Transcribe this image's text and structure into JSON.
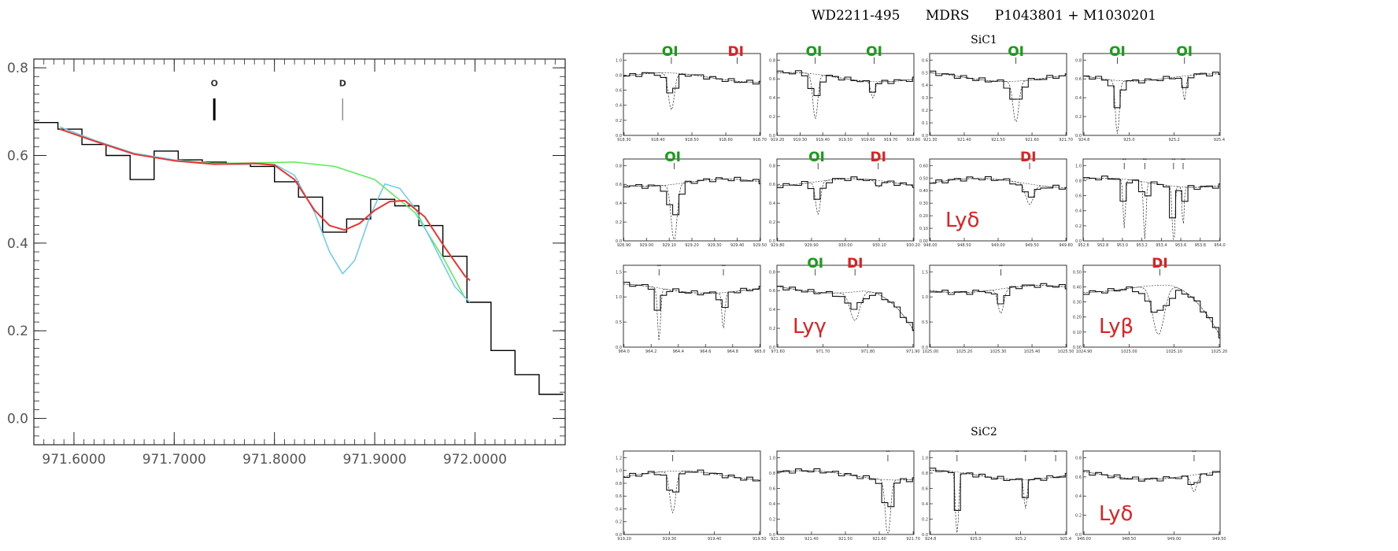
{
  "chart_data": [
    {
      "type": "line",
      "xlim": [
        971.56,
        972.09
      ],
      "ylim": [
        -0.06,
        0.82
      ],
      "xticks": [
        971.6,
        971.7,
        971.8,
        971.9,
        972.0
      ],
      "xtick_labels": [
        "971.6000",
        "971.7000",
        "971.8000",
        "971.9000",
        "972.0000"
      ],
      "yticks": [
        0.0,
        0.2,
        0.4,
        0.6,
        0.8
      ],
      "ytick_labels": [
        "0.0",
        "0.2",
        "0.4",
        "0.6",
        "0.8"
      ],
      "grid": false,
      "annotations": [
        {
          "text": "O",
          "x": 971.74,
          "y": 0.765
        },
        {
          "text": "D",
          "x": 971.868,
          "y": 0.765
        }
      ],
      "markers": [
        {
          "x": 971.74,
          "y1": 0.68,
          "y2": 0.73,
          "weight": "bold"
        },
        {
          "x": 971.868,
          "y1": 0.68,
          "y2": 0.73,
          "weight": "thin"
        }
      ],
      "series": [
        {
          "kind": "histogram",
          "color": "#000000",
          "edges": [
            971.56,
            971.584,
            971.608,
            971.632,
            971.656,
            971.68,
            971.704,
            971.728,
            971.752,
            971.776,
            971.8,
            971.824,
            971.848,
            971.872,
            971.896,
            971.92,
            971.944,
            971.968,
            971.992,
            972.016,
            972.04,
            972.064,
            972.088
          ],
          "values": [
            0.675,
            0.66,
            0.625,
            0.6,
            0.545,
            0.61,
            0.59,
            0.585,
            0.58,
            0.575,
            0.54,
            0.505,
            0.425,
            0.455,
            0.5,
            0.485,
            0.44,
            0.37,
            0.265,
            0.155,
            0.1,
            0.055
          ]
        },
        {
          "kind": "curve",
          "color": "#55ee55",
          "x": [
            971.586,
            971.62,
            971.66,
            971.7,
            971.74,
            971.78,
            971.82,
            971.86,
            971.9,
            971.94,
            971.97,
            971.99
          ],
          "y": [
            0.665,
            0.635,
            0.605,
            0.59,
            0.582,
            0.583,
            0.585,
            0.575,
            0.545,
            0.47,
            0.36,
            0.275
          ]
        },
        {
          "kind": "curve",
          "color": "#66ccee",
          "x": [
            971.586,
            971.62,
            971.66,
            971.7,
            971.74,
            971.78,
            971.8,
            971.82,
            971.84,
            971.855,
            971.868,
            971.88,
            971.895,
            971.91,
            971.925,
            971.94,
            971.96,
            971.98,
            971.995
          ],
          "y": [
            0.665,
            0.635,
            0.605,
            0.59,
            0.58,
            0.581,
            0.58,
            0.555,
            0.47,
            0.38,
            0.33,
            0.36,
            0.46,
            0.535,
            0.525,
            0.48,
            0.39,
            0.3,
            0.265
          ]
        },
        {
          "kind": "curve",
          "color": "#ee3333",
          "x": [
            971.586,
            971.62,
            971.66,
            971.7,
            971.74,
            971.78,
            971.8,
            971.82,
            971.84,
            971.855,
            971.87,
            971.885,
            971.9,
            971.915,
            971.93,
            971.95,
            971.97,
            971.99,
            971.995
          ],
          "y": [
            0.66,
            0.633,
            0.603,
            0.588,
            0.58,
            0.582,
            0.578,
            0.545,
            0.475,
            0.44,
            0.43,
            0.445,
            0.475,
            0.495,
            0.497,
            0.46,
            0.39,
            0.325,
            0.315
          ]
        }
      ]
    },
    {
      "type": "line",
      "title": "WD2211-495      MDRS      P1043801 + M1030201",
      "section_labels": [
        "SiC1",
        "SiC2"
      ],
      "panels": [
        {
          "xticks": [
            "918.30",
            "918.40",
            "918.50",
            "918.60",
            "918.70"
          ],
          "yticks": [
            "0.0",
            "0.2",
            "0.4",
            "0.6",
            "0.8",
            "1.0"
          ],
          "labels": [
            {
              "text": "OI",
              "color": "#1a9c1a",
              "at": 0.34
            },
            {
              "text": "DI",
              "color": "#e02020",
              "at": 0.82
            }
          ],
          "dips": [
            {
              "at": 0.35,
              "depth": 0.45,
              "width": 0.03
            }
          ],
          "ticks": [
            0.35,
            0.83
          ]
        },
        {
          "xticks": [
            "919.20",
            "919.30",
            "919.40",
            "919.50",
            "919.60",
            "919.70",
            "919.80"
          ],
          "yticks": [
            "0.0",
            "0.2",
            "0.4",
            "0.6",
            "0.8"
          ],
          "labels": [
            {
              "text": "OI",
              "color": "#1a9c1a",
              "at": 0.27
            },
            {
              "text": "OI",
              "color": "#1a9c1a",
              "at": 0.71
            }
          ],
          "dips": [
            {
              "at": 0.28,
              "depth": 0.55,
              "width": 0.025
            },
            {
              "at": 0.7,
              "depth": 0.2,
              "width": 0.02
            }
          ],
          "ticks": [
            0.28,
            0.71
          ]
        },
        {
          "xticks": [
            "921.30",
            "921.40",
            "921.50",
            "921.60",
            "921.70"
          ],
          "yticks": [
            "0.0",
            "0.1",
            "0.2",
            "0.3",
            "0.4",
            "0.5",
            "0.6"
          ],
          "labels": [
            {
              "text": "OI",
              "color": "#1a9c1a",
              "at": 0.63
            }
          ],
          "dips": [
            {
              "at": 0.63,
              "depth": 0.5,
              "width": 0.03
            }
          ],
          "ticks": [
            0.63
          ]
        },
        {
          "xticks": [
            "924.8",
            "925.0",
            "925.2",
            "925.4"
          ],
          "yticks": [
            "0.0",
            "0.2",
            "0.4",
            "0.6",
            "0.8"
          ],
          "labels": [
            {
              "text": "OI",
              "color": "#1a9c1a",
              "at": 0.25
            },
            {
              "text": "OI",
              "color": "#1a9c1a",
              "at": 0.74
            }
          ],
          "dips": [
            {
              "at": 0.25,
              "depth": 0.65,
              "width": 0.02
            },
            {
              "at": 0.74,
              "depth": 0.3,
              "width": 0.015
            }
          ],
          "ticks": [
            0.25,
            0.74
          ]
        },
        {
          "xticks": [
            "928.90",
            "929.00",
            "929.10",
            "929.20",
            "929.30",
            "929.40",
            "929.50"
          ],
          "yticks": [
            "0.0",
            "0.2",
            "0.4",
            "0.6",
            "0.8"
          ],
          "labels": [
            {
              "text": "OI",
              "color": "#1a9c1a",
              "at": 0.36
            }
          ],
          "dips": [
            {
              "at": 0.37,
              "depth": 0.7,
              "width": 0.03
            }
          ],
          "ticks": [
            0.37
          ]
        },
        {
          "xticks": [
            "929.80",
            "929.90",
            "930.00",
            "930.10",
            "930.20"
          ],
          "yticks": [
            "0.0",
            "0.2",
            "0.4",
            "0.6",
            "0.8"
          ],
          "labels": [
            {
              "text": "OI",
              "color": "#1a9c1a",
              "at": 0.29
            },
            {
              "text": "DI",
              "color": "#e02020",
              "at": 0.74
            }
          ],
          "dips": [
            {
              "at": 0.3,
              "depth": 0.4,
              "width": 0.025
            },
            {
              "at": 0.74,
              "depth": 0.08,
              "width": 0.03
            }
          ],
          "ticks": [
            0.3,
            0.74
          ]
        },
        {
          "xticks": [
            "948.00",
            "948.50",
            "949.00",
            "949.50",
            "949.80"
          ],
          "yticks": [
            "0.00",
            "0.10",
            "0.20",
            "0.30",
            "0.40",
            "0.50",
            "0.60"
          ],
          "labels": [
            {
              "text": "DI",
              "color": "#e02020",
              "at": 0.72
            },
            {
              "text": "Lyδ",
              "color": "#e02020",
              "big": true
            }
          ],
          "dips": [
            {
              "at": 0.73,
              "depth": 0.25,
              "width": 0.04
            }
          ],
          "ticks": [
            0.73
          ]
        },
        {
          "xticks": [
            "952.6",
            "952.8",
            "953.0",
            "953.2",
            "953.4",
            "953.6",
            "953.8",
            "954.0"
          ],
          "yticks": [
            "0.0",
            "0.2",
            "0.4",
            "0.6",
            "0.8",
            "1.0"
          ],
          "labels": [],
          "dips": [
            {
              "at": 0.3,
              "depth": 0.6,
              "width": 0.012
            },
            {
              "at": 0.45,
              "depth": 0.75,
              "width": 0.012
            },
            {
              "at": 0.66,
              "depth": 0.85,
              "width": 0.012
            },
            {
              "at": 0.73,
              "depth": 0.5,
              "width": 0.01
            }
          ],
          "ticks": [
            0.3,
            0.45,
            0.66,
            0.73
          ],
          "stars": true
        },
        {
          "xticks": [
            "964.0",
            "964.2",
            "964.4",
            "964.6",
            "964.8",
            "965.0"
          ],
          "yticks": [
            "0.0",
            "0.5",
            "1.0",
            "1.5"
          ],
          "labels": [],
          "dips": [
            {
              "at": 0.26,
              "depth": 0.65,
              "width": 0.015
            },
            {
              "at": 0.73,
              "depth": 0.45,
              "width": 0.015
            }
          ],
          "ticks": [
            0.26,
            0.73
          ],
          "stars": true
        },
        {
          "xticks": [
            "971.60",
            "971.70",
            "971.80",
            "971.90"
          ],
          "yticks": [
            "0.0",
            "0.2",
            "0.4",
            "0.6",
            "0.8"
          ],
          "labels": [
            {
              "text": "OI",
              "color": "#1a9c1a",
              "at": 0.28
            },
            {
              "text": "DI",
              "color": "#e02020",
              "at": 0.57
            },
            {
              "text": "Lyγ",
              "color": "#e02020",
              "big": true
            }
          ],
          "dips": [
            {
              "at": 0.57,
              "depth": 0.35,
              "width": 0.05
            }
          ],
          "ticks": [
            0.28,
            0.57
          ],
          "falloff": true
        },
        {
          "xticks": [
            "1025.00",
            "1025.20",
            "1025.30",
            "1025.40",
            "1025.50"
          ],
          "yticks": [
            "0.0",
            "0.5",
            "1.0",
            "1.5"
          ],
          "labels": [],
          "dips": [
            {
              "at": 0.52,
              "depth": 0.3,
              "width": 0.03
            }
          ],
          "ticks": [
            0.52
          ],
          "stars": true
        },
        {
          "xticks": [
            "1024.90",
            "1025.00",
            "1025.10",
            "1025.20"
          ],
          "yticks": [
            "0.00",
            "0.10",
            "0.20",
            "0.30",
            "0.40",
            "0.50"
          ],
          "labels": [
            {
              "text": "DI",
              "color": "#e02020",
              "at": 0.56
            },
            {
              "text": "Lyβ",
              "color": "#e02020",
              "big": true
            }
          ],
          "dips": [
            {
              "at": 0.55,
              "depth": 0.6,
              "width": 0.06
            }
          ],
          "ticks": [
            0.56
          ],
          "falloff": true
        },
        {
          "xticks": [
            "919.20",
            "919.30",
            "919.40",
            "919.50"
          ],
          "yticks": [
            "0.0",
            "0.2",
            "0.4",
            "0.6",
            "0.8",
            "1.0",
            "1.2"
          ],
          "labels": [],
          "dips": [
            {
              "at": 0.36,
              "depth": 0.5,
              "width": 0.03
            }
          ],
          "ticks": [
            0.36
          ],
          "stars": true
        },
        {
          "xticks": [
            "921.30",
            "921.40",
            "921.50",
            "921.60",
            "921.70"
          ],
          "yticks": [
            "0.0",
            "0.2",
            "0.4",
            "0.6",
            "0.8",
            "1.0"
          ],
          "labels": [],
          "dips": [
            {
              "at": 0.81,
              "depth": 0.7,
              "width": 0.025
            }
          ],
          "ticks": [
            0.81
          ],
          "stars": true
        },
        {
          "xticks": [
            "924.8",
            "925.0",
            "925.2",
            "925.4"
          ],
          "yticks": [
            "0.0",
            "0.2",
            "0.4",
            "0.6",
            "0.8",
            "1.0"
          ],
          "labels": [],
          "dips": [
            {
              "at": 0.2,
              "depth": 0.8,
              "width": 0.015
            },
            {
              "at": 0.7,
              "depth": 0.35,
              "width": 0.015
            }
          ],
          "ticks": [
            0.2,
            0.7,
            0.92
          ],
          "stars": true
        },
        {
          "xticks": [
            "948.00",
            "948.50",
            "949.00",
            "949.50"
          ],
          "yticks": [
            "0.0",
            "0.2",
            "0.4",
            "0.6",
            "0.8"
          ],
          "labels": [
            {
              "text": "Lyδ",
              "color": "#e02020",
              "big": true
            }
          ],
          "dips": [
            {
              "at": 0.81,
              "depth": 0.2,
              "width": 0.03
            }
          ],
          "ticks": [
            0.81
          ],
          "stars": true
        }
      ]
    }
  ]
}
